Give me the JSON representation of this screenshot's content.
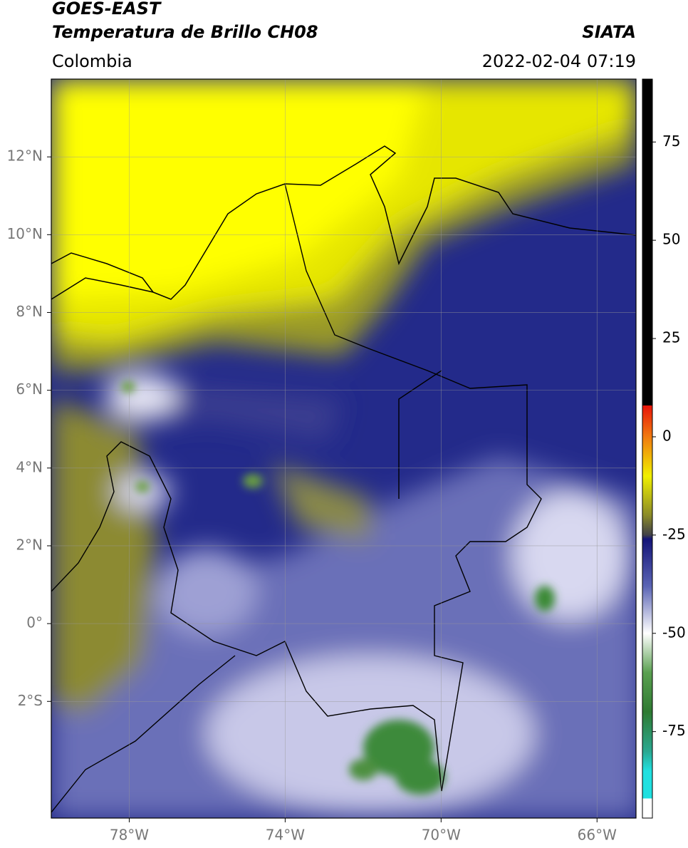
{
  "header": {
    "title": "GOES-EAST",
    "subtitle": "Temperatura de Brillo CH08",
    "source": "SIATA",
    "region": "Colombia",
    "timestamp": "2022-02-04 07:19"
  },
  "map": {
    "xlim": [
      -80,
      -65
    ],
    "ylim": [
      -5,
      14
    ],
    "grid": true,
    "xticks": [
      {
        "value": -78,
        "label": "78°W"
      },
      {
        "value": -74,
        "label": "74°W"
      },
      {
        "value": -70,
        "label": "70°W"
      },
      {
        "value": -66,
        "label": "66°W"
      }
    ],
    "yticks": [
      {
        "value": 12,
        "label": "12°N"
      },
      {
        "value": 10,
        "label": "10°N"
      },
      {
        "value": 8,
        "label": "8°N"
      },
      {
        "value": 6,
        "label": "6°N"
      },
      {
        "value": 4,
        "label": "4°N"
      },
      {
        "value": 2,
        "label": "2°N"
      },
      {
        "value": 0,
        "label": "0°"
      },
      {
        "value": -2,
        "label": "2°S"
      }
    ]
  },
  "colorbar": {
    "lim": [
      -97,
      91
    ],
    "ticks": [
      75,
      50,
      25,
      0,
      -25,
      -50,
      -75
    ],
    "stops": [
      {
        "value": 91,
        "color": "#000000"
      },
      {
        "value": 8,
        "color": "#000000"
      },
      {
        "value": 8,
        "color": "#e8140a"
      },
      {
        "value": 0,
        "color": "#f07a10"
      },
      {
        "value": -10,
        "color": "#f0f000"
      },
      {
        "value": -20,
        "color": "#8a8a28"
      },
      {
        "value": -25,
        "color": "#404048"
      },
      {
        "value": -26,
        "color": "#141478"
      },
      {
        "value": -38,
        "color": "#5a64b4"
      },
      {
        "value": -50,
        "color": "#ffffff"
      },
      {
        "value": -60,
        "color": "#5aa050"
      },
      {
        "value": -70,
        "color": "#2e7a32"
      },
      {
        "value": -80,
        "color": "#2aa890"
      },
      {
        "value": -85,
        "color": "#20e0e0"
      },
      {
        "value": -92,
        "color": "#20e0e0"
      },
      {
        "value": -92,
        "color": "#ffffff"
      },
      {
        "value": -97,
        "color": "#ffffff"
      }
    ]
  }
}
